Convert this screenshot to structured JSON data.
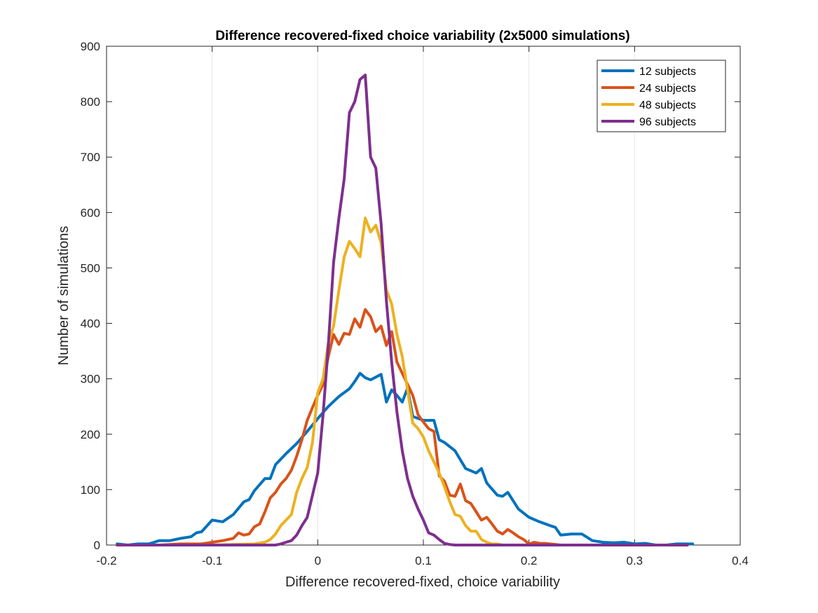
{
  "chart_data": {
    "type": "line",
    "title": "Difference recovered-fixed choice variability (2x5000 simulations)",
    "xlabel": "Difference recovered-fixed, choice variability",
    "ylabel": "Number of simulations",
    "xlim": [
      -0.2,
      0.4
    ],
    "ylim": [
      0,
      900
    ],
    "xticks": [
      -0.2,
      -0.1,
      0,
      0.1,
      0.2,
      0.3,
      0.4
    ],
    "xtick_labels": [
      "-0.2",
      "-0.1",
      "0",
      "0.1",
      "0.2",
      "0.3",
      "0.4"
    ],
    "yticks": [
      0,
      100,
      200,
      300,
      400,
      500,
      600,
      700,
      800,
      900
    ],
    "ytick_labels": [
      "0",
      "100",
      "200",
      "300",
      "400",
      "500",
      "600",
      "700",
      "800",
      "900"
    ],
    "grid": "vertical",
    "legend_position": "top-right",
    "series": [
      {
        "name": "12 subjects",
        "color": "#0072BD",
        "x": [
          -0.19,
          -0.18,
          -0.17,
          -0.16,
          -0.15,
          -0.14,
          -0.13,
          -0.12,
          -0.115,
          -0.11,
          -0.1,
          -0.09,
          -0.08,
          -0.07,
          -0.065,
          -0.06,
          -0.05,
          -0.045,
          -0.04,
          -0.03,
          -0.02,
          -0.01,
          0.0,
          0.01,
          0.02,
          0.03,
          0.035,
          0.04,
          0.045,
          0.05,
          0.055,
          0.06,
          0.065,
          0.07,
          0.075,
          0.08,
          0.085,
          0.09,
          0.1,
          0.11,
          0.115,
          0.12,
          0.13,
          0.14,
          0.15,
          0.155,
          0.16,
          0.17,
          0.175,
          0.18,
          0.19,
          0.2,
          0.21,
          0.22,
          0.225,
          0.23,
          0.24,
          0.25,
          0.26,
          0.27,
          0.28,
          0.29,
          0.3,
          0.31,
          0.32,
          0.33,
          0.34,
          0.35,
          0.355
        ],
        "values": [
          2,
          0,
          2,
          2,
          8,
          8,
          12,
          15,
          22,
          24,
          45,
          42,
          55,
          78,
          82,
          98,
          120,
          120,
          145,
          165,
          183,
          205,
          228,
          250,
          268,
          282,
          295,
          310,
          302,
          298,
          303,
          308,
          258,
          280,
          270,
          258,
          283,
          232,
          225,
          225,
          190,
          185,
          170,
          138,
          130,
          138,
          112,
          90,
          88,
          95,
          65,
          50,
          42,
          35,
          32,
          18,
          20,
          20,
          8,
          5,
          4,
          5,
          2,
          3,
          0,
          0,
          2,
          2,
          2
        ]
      },
      {
        "name": "24 subjects",
        "color": "#D95319",
        "x": [
          -0.19,
          -0.15,
          -0.13,
          -0.11,
          -0.1,
          -0.09,
          -0.08,
          -0.075,
          -0.07,
          -0.065,
          -0.06,
          -0.055,
          -0.05,
          -0.045,
          -0.04,
          -0.035,
          -0.03,
          -0.025,
          -0.02,
          -0.015,
          -0.01,
          -0.005,
          0.0,
          0.005,
          0.01,
          0.015,
          0.02,
          0.025,
          0.03,
          0.035,
          0.04,
          0.045,
          0.05,
          0.055,
          0.06,
          0.065,
          0.07,
          0.075,
          0.08,
          0.085,
          0.09,
          0.095,
          0.1,
          0.105,
          0.11,
          0.115,
          0.12,
          0.125,
          0.13,
          0.135,
          0.14,
          0.145,
          0.15,
          0.155,
          0.16,
          0.165,
          0.17,
          0.175,
          0.18,
          0.185,
          0.19,
          0.195,
          0.2,
          0.205,
          0.21,
          0.215,
          0.22,
          0.23,
          0.24,
          0.26,
          0.3,
          0.35
        ],
        "values": [
          0,
          0,
          2,
          2,
          5,
          8,
          12,
          22,
          18,
          20,
          33,
          38,
          60,
          85,
          95,
          110,
          120,
          135,
          160,
          190,
          225,
          248,
          270,
          290,
          340,
          380,
          362,
          382,
          380,
          408,
          393,
          425,
          412,
          385,
          395,
          360,
          385,
          330,
          310,
          290,
          270,
          235,
          222,
          210,
          205,
          125,
          115,
          90,
          88,
          110,
          80,
          75,
          60,
          45,
          50,
          38,
          25,
          20,
          28,
          22,
          15,
          10,
          2,
          5,
          3,
          3,
          2,
          0,
          0,
          0,
          0,
          0
        ]
      },
      {
        "name": "48 subjects",
        "color": "#EDB120",
        "x": [
          -0.19,
          -0.1,
          -0.06,
          -0.05,
          -0.045,
          -0.04,
          -0.035,
          -0.03,
          -0.025,
          -0.02,
          -0.015,
          -0.01,
          -0.005,
          0.0,
          0.005,
          0.01,
          0.015,
          0.02,
          0.025,
          0.03,
          0.035,
          0.04,
          0.045,
          0.05,
          0.055,
          0.06,
          0.065,
          0.07,
          0.075,
          0.08,
          0.085,
          0.09,
          0.095,
          0.1,
          0.105,
          0.11,
          0.115,
          0.12,
          0.125,
          0.13,
          0.135,
          0.14,
          0.145,
          0.15,
          0.155,
          0.16,
          0.165,
          0.17,
          0.175,
          0.18,
          0.19,
          0.2,
          0.25,
          0.35
        ],
        "values": [
          0,
          0,
          2,
          5,
          10,
          20,
          35,
          45,
          55,
          95,
          120,
          140,
          185,
          275,
          300,
          365,
          395,
          460,
          520,
          548,
          535,
          520,
          590,
          565,
          577,
          545,
          460,
          435,
          380,
          340,
          280,
          220,
          210,
          195,
          170,
          150,
          130,
          105,
          78,
          55,
          52,
          35,
          25,
          25,
          10,
          5,
          2,
          2,
          0,
          0,
          0,
          0,
          0,
          0
        ]
      },
      {
        "name": "96 subjects",
        "color": "#7E2F8E",
        "x": [
          -0.19,
          -0.04,
          -0.035,
          -0.03,
          -0.025,
          -0.02,
          -0.015,
          -0.01,
          -0.005,
          0.0,
          0.005,
          0.01,
          0.015,
          0.02,
          0.025,
          0.03,
          0.035,
          0.04,
          0.045,
          0.05,
          0.055,
          0.06,
          0.065,
          0.07,
          0.075,
          0.08,
          0.085,
          0.09,
          0.095,
          0.1,
          0.105,
          0.11,
          0.115,
          0.12,
          0.125,
          0.13,
          0.135,
          0.14,
          0.15,
          0.2,
          0.25,
          0.3,
          0.35
        ],
        "values": [
          0,
          0,
          2,
          5,
          8,
          18,
          35,
          50,
          90,
          130,
          235,
          360,
          510,
          590,
          660,
          780,
          800,
          840,
          848,
          700,
          680,
          580,
          440,
          330,
          240,
          170,
          120,
          88,
          65,
          45,
          22,
          18,
          10,
          3,
          1,
          0,
          0,
          0,
          0,
          0,
          0,
          0,
          0
        ]
      }
    ]
  }
}
